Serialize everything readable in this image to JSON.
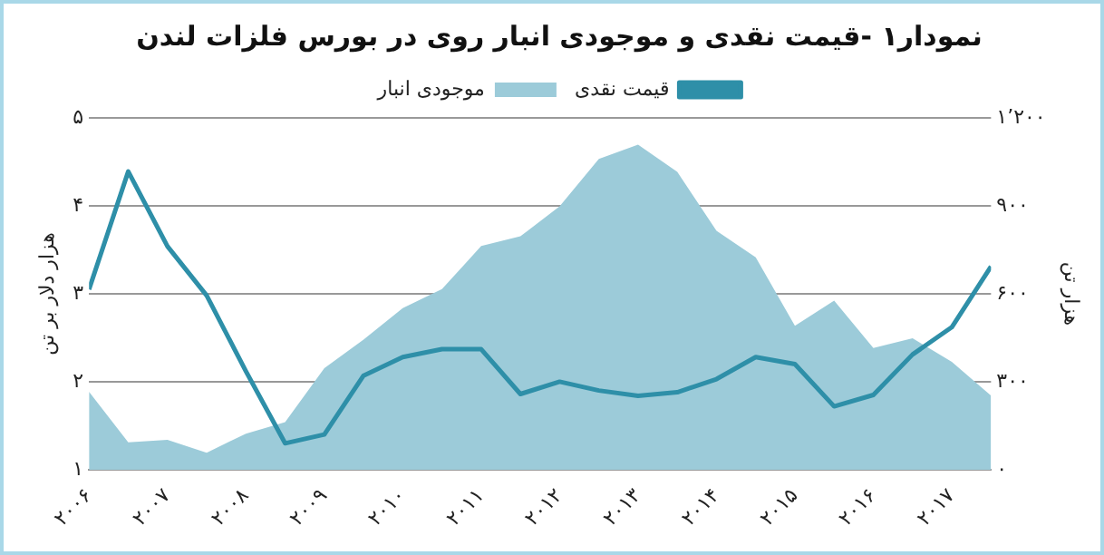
{
  "chart_data": {
    "type": "line",
    "title": "نمودار۱ -قیمت نقدی و موجودی انبار روی در بورس فلزات لندن",
    "ylabel": "هزار دلار بر تن",
    "y2label": "هزار تن",
    "x": [
      2006,
      2006.5,
      2007,
      2007.5,
      2008,
      2008.5,
      2009,
      2009.5,
      2010,
      2010.5,
      2011,
      2011.5,
      2012,
      2012.5,
      2013,
      2013.5,
      2014,
      2014.5,
      2015,
      2015.5,
      2016,
      2016.5,
      2017,
      2017.5
    ],
    "series": [
      {
        "name": "قیمت نقدی",
        "type": "line",
        "color": "#2e8fa8",
        "values": [
          3.05,
          4.39,
          3.54,
          2.98,
          2.12,
          1.3,
          1.4,
          2.07,
          2.28,
          2.37,
          2.37,
          1.86,
          2.0,
          1.9,
          1.84,
          1.88,
          2.03,
          2.28,
          2.2,
          1.72,
          1.85,
          2.31,
          2.62,
          3.31
        ]
      },
      {
        "name": "موجودی انبار",
        "type": "area",
        "axis": "y2",
        "color": "#9ccbd9",
        "values": [
          266,
          93,
          102,
          58,
          123,
          162,
          346,
          444,
          551,
          616,
          763,
          796,
          898,
          1060,
          1109,
          1016,
          815,
          724,
          491,
          577,
          415,
          448,
          368,
          253
        ]
      }
    ],
    "xlim": [
      2006,
      2017.5
    ],
    "xticks": [
      {
        "value": 2006,
        "label": "۲۰۰۶"
      },
      {
        "value": 2007,
        "label": "۲۰۰۷"
      },
      {
        "value": 2008,
        "label": "۲۰۰۸"
      },
      {
        "value": 2009,
        "label": "۲۰۰۹"
      },
      {
        "value": 2010,
        "label": "۲۰۱۰"
      },
      {
        "value": 2011,
        "label": "۲۰۱۱"
      },
      {
        "value": 2012,
        "label": "۲۰۱۲"
      },
      {
        "value": 2013,
        "label": "۲۰۱۳"
      },
      {
        "value": 2014,
        "label": "۲۰۱۴"
      },
      {
        "value": 2015,
        "label": "۲۰۱۵"
      },
      {
        "value": 2016,
        "label": "۲۰۱۶"
      },
      {
        "value": 2017,
        "label": "۲۰۱۷"
      }
    ],
    "ylim": [
      1,
      5
    ],
    "yticks": [
      {
        "value": 1,
        "label": "۱"
      },
      {
        "value": 2,
        "label": "۲"
      },
      {
        "value": 3,
        "label": "۳"
      },
      {
        "value": 4,
        "label": "۴"
      },
      {
        "value": 5,
        "label": "۵"
      }
    ],
    "y2lim": [
      0,
      1200
    ],
    "y2ticks": [
      {
        "value": 0,
        "label": "۰"
      },
      {
        "value": 300,
        "label": "۳۰۰"
      },
      {
        "value": 600,
        "label": "۶۰۰"
      },
      {
        "value": 900,
        "label": "۹۰۰"
      },
      {
        "value": 1200,
        "label": "۱٬۲۰۰"
      }
    ],
    "grid": "y",
    "legend": "top",
    "marker": "none",
    "line_style": "solid"
  }
}
